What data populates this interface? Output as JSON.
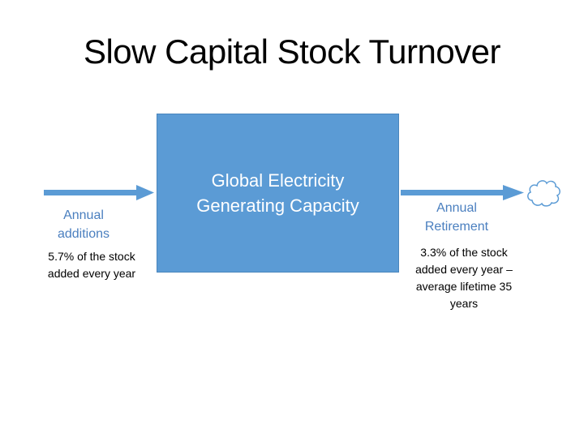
{
  "title": "Slow Capital Stock Turnover",
  "stock": {
    "label_line1": "Global Electricity",
    "label_line2": "Generating Capacity",
    "fill": "#5b9bd5"
  },
  "inflow": {
    "label_line1": "Annual",
    "label_line2": "additions",
    "note_line1": "5.7% of the stock",
    "note_line2": "added every year",
    "color": "#5b9bd5"
  },
  "outflow": {
    "label_line1": "Annual",
    "label_line2": "Retirement",
    "note_line1": "3.3% of the stock",
    "note_line2": "added every year –",
    "note_line3": "average lifetime 35",
    "note_line4": "years",
    "color": "#5b9bd5"
  },
  "sink": {
    "icon": "cloud-icon"
  }
}
